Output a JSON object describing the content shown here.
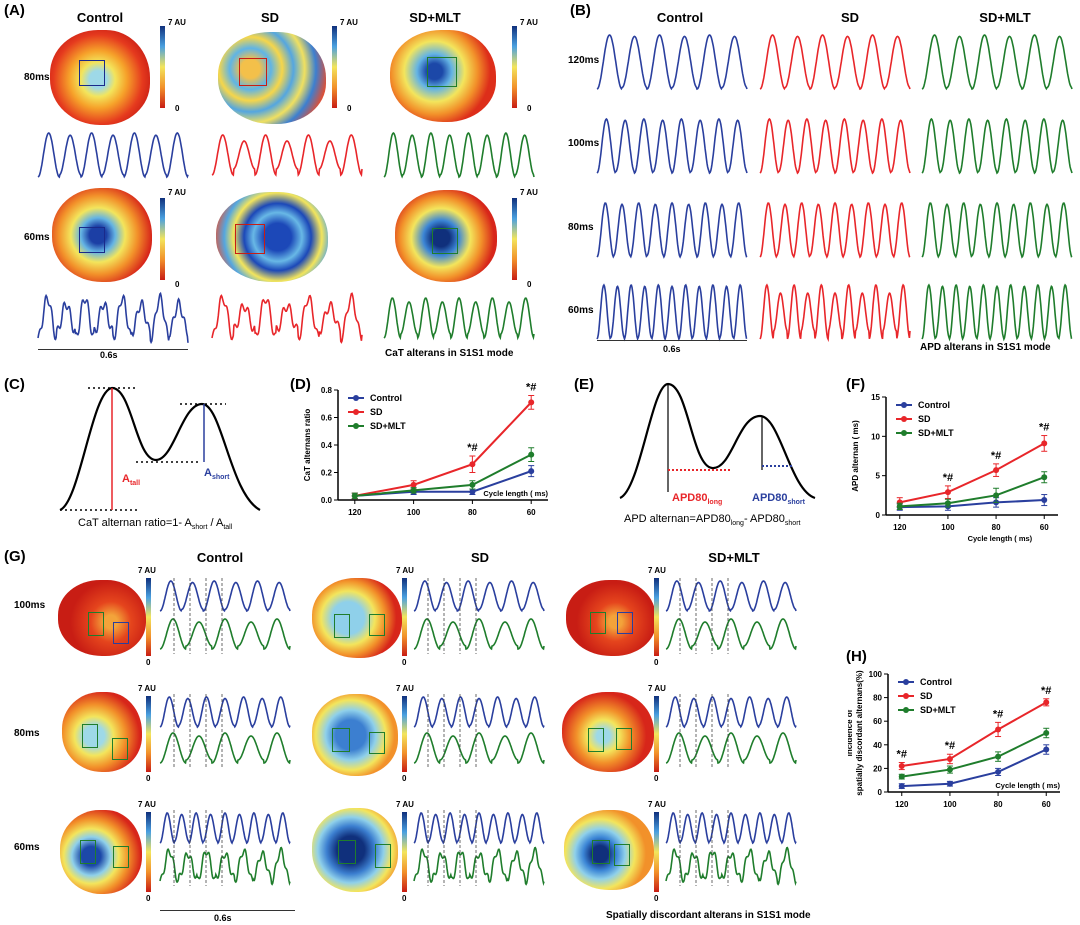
{
  "A": {
    "label": "(A)",
    "columns": [
      "Control",
      "SD",
      "SD+MLT"
    ],
    "rows": [
      "80ms",
      "60ms"
    ],
    "scale_top": "7 AU",
    "scale_bottom": "0",
    "scalebar": "0.6s",
    "caption": "CaT alterans in S1S1 mode"
  },
  "B": {
    "label": "(B)",
    "columns": [
      "Control",
      "SD",
      "SD+MLT"
    ],
    "rows": [
      "120ms",
      "100ms",
      "80ms",
      "60ms"
    ],
    "scalebar": "0.6s",
    "caption": "APD alterans in S1S1 mode"
  },
  "C": {
    "label": "(C)",
    "a_tall": "A",
    "a_tall_sub": "tall",
    "a_short": "A",
    "a_short_sub": "short",
    "formula": "CaT alternan ratio=1- A",
    "formula_sub1": "short",
    "formula_mid": " / A",
    "formula_sub2": "tall"
  },
  "E": {
    "label": "(E)",
    "long": "APD80",
    "long_sub": "long",
    "short": "APD80",
    "short_sub": "short",
    "formula": "APD alternan=APD80",
    "formula_sub1": "long",
    "formula_mid": "- APD80",
    "formula_sub2": "short"
  },
  "G": {
    "label": "(G)",
    "columns": [
      "Control",
      "SD",
      "SD+MLT"
    ],
    "rows": [
      "100ms",
      "80ms",
      "60ms"
    ],
    "scale_top": "7 AU",
    "scale_bottom": "0",
    "scalebar": "0.6s",
    "caption": "Spatially discordant alterans in S1S1 mode"
  },
  "colors": {
    "control": "#2a3f9e",
    "sd": "#e8262a",
    "sdmlt": "#1f7d2c"
  },
  "chart_data": [
    {
      "panel": "(D)",
      "type": "line",
      "ylabel": "CaT alternans ratio",
      "xlabel": "Cycle length ( ms)",
      "categories": [
        "120",
        "100",
        "80",
        "60"
      ],
      "ylim": [
        0,
        0.8
      ],
      "yticks": [
        "0.0",
        "0.2",
        "0.4",
        "0.6",
        "0.8"
      ],
      "series": [
        {
          "name": "Control",
          "color": "#2a3f9e",
          "values": [
            0.03,
            0.06,
            0.06,
            0.21
          ],
          "err": [
            0.02,
            0.02,
            0.02,
            0.04
          ]
        },
        {
          "name": "SD",
          "color": "#e8262a",
          "values": [
            0.03,
            0.11,
            0.26,
            0.71
          ],
          "err": [
            0.02,
            0.03,
            0.06,
            0.05
          ]
        },
        {
          "name": "SD+MLT",
          "color": "#1f7d2c",
          "values": [
            0.03,
            0.07,
            0.11,
            0.33
          ],
          "err": [
            0.02,
            0.02,
            0.03,
            0.05
          ]
        }
      ],
      "annotations": [
        {
          "category": "80",
          "text": "*#"
        },
        {
          "category": "60",
          "text": "*#"
        }
      ],
      "legend": "top-left"
    },
    {
      "panel": "(F)",
      "type": "line",
      "ylabel": "APD alternan ( ms)",
      "xlabel": "Cycle length ( ms)",
      "categories": [
        "120",
        "100",
        "80",
        "60"
      ],
      "ylim": [
        0,
        15
      ],
      "yticks": [
        "0",
        "5",
        "10",
        "15"
      ],
      "series": [
        {
          "name": "Control",
          "color": "#2a3f9e",
          "values": [
            1.0,
            1.1,
            1.6,
            1.9
          ],
          "err": [
            0.4,
            0.5,
            0.6,
            0.7
          ]
        },
        {
          "name": "SD",
          "color": "#e8262a",
          "values": [
            1.6,
            2.9,
            5.7,
            9.1
          ],
          "err": [
            0.6,
            0.8,
            0.8,
            1.0
          ]
        },
        {
          "name": "SD+MLT",
          "color": "#1f7d2c",
          "values": [
            1.1,
            1.5,
            2.5,
            4.8
          ],
          "err": [
            0.4,
            0.5,
            0.9,
            0.7
          ]
        }
      ],
      "annotations": [
        {
          "category": "100",
          "text": "*#"
        },
        {
          "category": "80",
          "text": "*#"
        },
        {
          "category": "60",
          "text": "*#"
        }
      ],
      "legend": "top-left"
    },
    {
      "panel": "(H)",
      "type": "line",
      "ylabel": "Incidence of spatially discordant alternans(%)",
      "xlabel": "Cycle length ( ms)",
      "categories": [
        "120",
        "100",
        "80",
        "60"
      ],
      "ylim": [
        0,
        100
      ],
      "yticks": [
        "0",
        "20",
        "40",
        "60",
        "80",
        "100"
      ],
      "series": [
        {
          "name": "Control",
          "color": "#2a3f9e",
          "values": [
            5,
            7,
            17,
            36
          ],
          "err": [
            2,
            2,
            3,
            4
          ]
        },
        {
          "name": "SD",
          "color": "#e8262a",
          "values": [
            22,
            28,
            53,
            76
          ],
          "err": [
            3,
            4,
            6,
            3
          ]
        },
        {
          "name": "SD+MLT",
          "color": "#1f7d2c",
          "values": [
            13,
            19,
            30,
            50
          ],
          "err": [
            2,
            3,
            4,
            4
          ]
        }
      ],
      "annotations": [
        {
          "category": "120",
          "text": "*#"
        },
        {
          "category": "100",
          "text": "*#"
        },
        {
          "category": "80",
          "text": "*#"
        },
        {
          "category": "60",
          "text": "*#"
        }
      ],
      "legend": "top-left"
    }
  ]
}
